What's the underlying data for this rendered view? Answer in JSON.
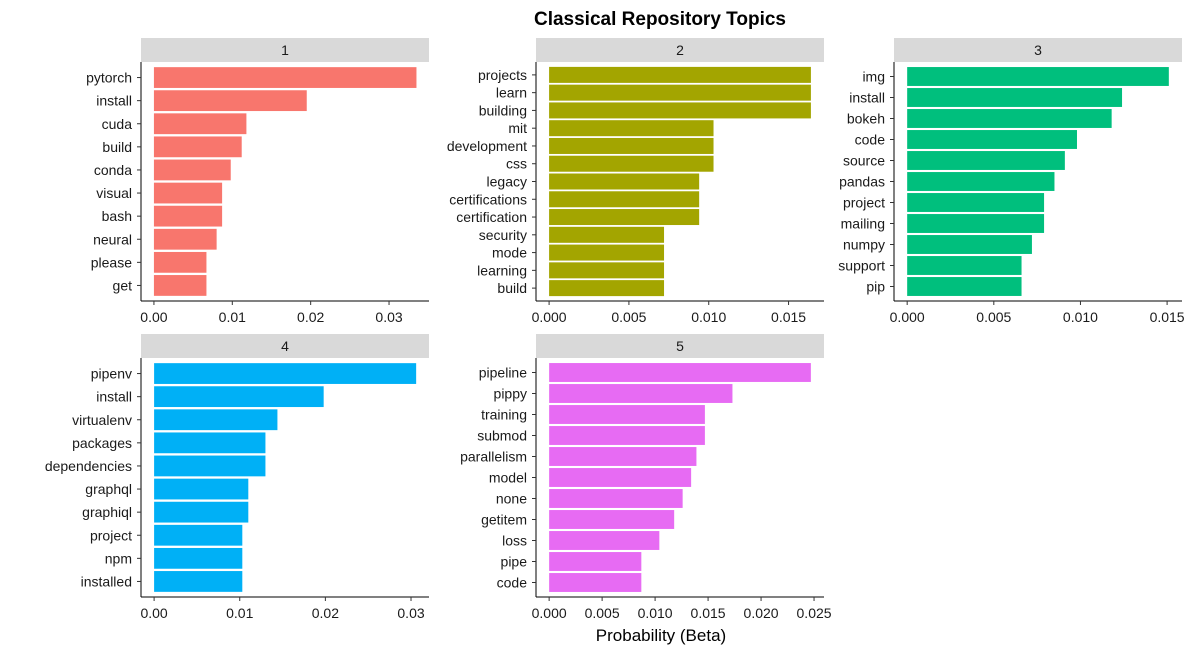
{
  "chart_data": {
    "type": "bar",
    "orientation": "horizontal",
    "title": "Classical Repository Topics",
    "xlabel": "Probability (Beta)",
    "ylabel": "",
    "grid": false,
    "panels": [
      {
        "label": "1",
        "color": "#F8766D",
        "categories": [
          "pytorch",
          "install",
          "cuda",
          "build",
          "conda",
          "visual",
          "bash",
          "neural",
          "please",
          "get"
        ],
        "values": [
          0.0335,
          0.0195,
          0.0118,
          0.0112,
          0.0098,
          0.0087,
          0.0087,
          0.008,
          0.0067,
          0.0067
        ],
        "xlim": [
          -0.00165,
          0.0351
        ],
        "ticks": [
          0.0,
          0.01,
          0.02,
          0.03
        ],
        "tick_labels": [
          "0.00",
          "0.01",
          "0.02",
          "0.03"
        ]
      },
      {
        "label": "2",
        "color": "#A3A500",
        "categories": [
          "projects",
          "learn",
          "building",
          "mit",
          "development",
          "css",
          "legacy",
          "certifications",
          "certification",
          "security",
          "mode",
          "learning",
          "build"
        ],
        "values": [
          0.0164,
          0.0164,
          0.0164,
          0.0103,
          0.0103,
          0.0103,
          0.0094,
          0.0094,
          0.0094,
          0.0072,
          0.0072,
          0.0072,
          0.0072
        ],
        "xlim": [
          -0.00082,
          0.01722
        ],
        "ticks": [
          0.0,
          0.005,
          0.01,
          0.015
        ],
        "tick_labels": [
          "0.000",
          "0.005",
          "0.010",
          "0.015"
        ]
      },
      {
        "label": "3",
        "color": "#00BF7D",
        "categories": [
          "img",
          "install",
          "bokeh",
          "code",
          "source",
          "pandas",
          "project",
          "mailing",
          "numpy",
          "support",
          "pip"
        ],
        "values": [
          0.0151,
          0.0124,
          0.0118,
          0.0098,
          0.0091,
          0.0085,
          0.0079,
          0.0079,
          0.0072,
          0.0066,
          0.0066
        ],
        "xlim": [
          -0.00076,
          0.01586
        ],
        "ticks": [
          0.0,
          0.005,
          0.01,
          0.015
        ],
        "tick_labels": [
          "0.000",
          "0.005",
          "0.010",
          "0.015"
        ]
      },
      {
        "label": "4",
        "color": "#00B0F6",
        "categories": [
          "pipenv",
          "install",
          "virtualenv",
          "packages",
          "dependencies",
          "graphql",
          "graphiql",
          "project",
          "npm",
          "installed"
        ],
        "values": [
          0.0306,
          0.0198,
          0.0144,
          0.013,
          0.013,
          0.011,
          0.011,
          0.0103,
          0.0103,
          0.0103
        ],
        "xlim": [
          -0.00153,
          0.0321
        ],
        "ticks": [
          0.0,
          0.01,
          0.02,
          0.03
        ],
        "tick_labels": [
          "0.00",
          "0.01",
          "0.02",
          "0.03"
        ]
      },
      {
        "label": "5",
        "color": "#E76BF3",
        "categories": [
          "pipeline",
          "pippy",
          "training",
          "submod",
          "parallelism",
          "model",
          "none",
          "getitem",
          "loss",
          "pipe",
          "code"
        ],
        "values": [
          0.0247,
          0.0173,
          0.0147,
          0.0147,
          0.0139,
          0.0134,
          0.0126,
          0.0118,
          0.0104,
          0.0087,
          0.0087
        ],
        "xlim": [
          -0.00124,
          0.02594
        ],
        "ticks": [
          0.0,
          0.005,
          0.01,
          0.015,
          0.02,
          0.025
        ],
        "tick_labels": [
          "0.000",
          "0.005",
          "0.010",
          "0.015",
          "0.020",
          "0.025"
        ]
      }
    ]
  }
}
